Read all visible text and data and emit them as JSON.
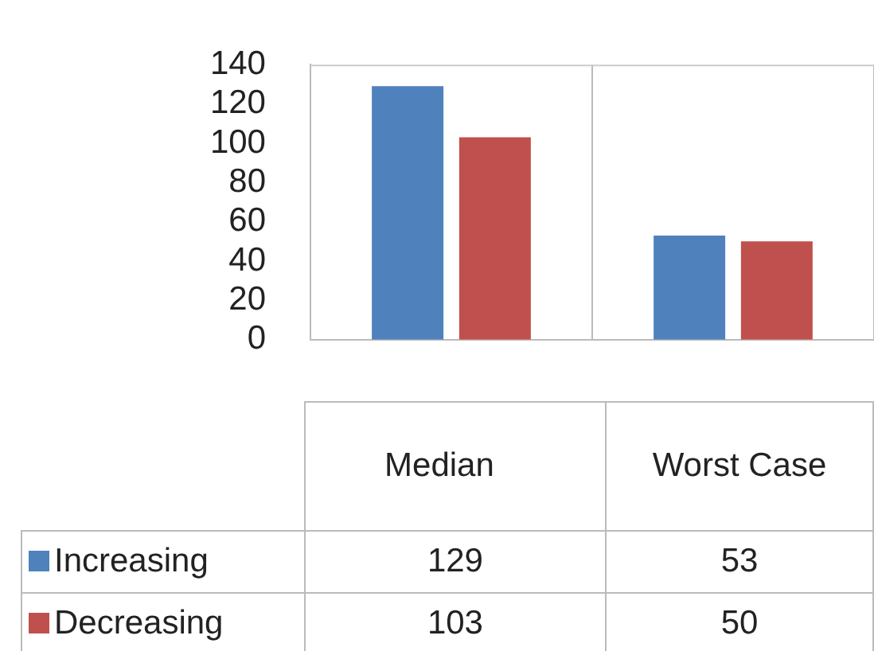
{
  "chart_data": {
    "type": "bar",
    "categories": [
      "Median",
      "Worst Case"
    ],
    "series": [
      {
        "name": "Increasing",
        "color": "#4f81bd",
        "values": [
          129,
          53
        ]
      },
      {
        "name": "Decreasing",
        "color": "#c0504d",
        "values": [
          103,
          50
        ]
      }
    ],
    "ylim": [
      0,
      140
    ],
    "yticks": [
      0,
      20,
      40,
      60,
      80,
      100,
      120,
      140
    ],
    "grid": false,
    "legend": "bottom",
    "data_labels": true
  }
}
